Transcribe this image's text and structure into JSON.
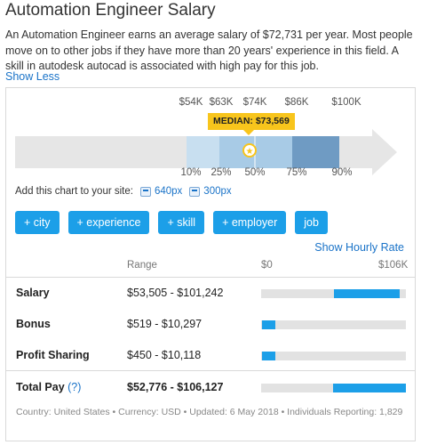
{
  "title": "Automation Engineer Salary",
  "description": "An Automation Engineer earns an average salary of $72,731 per year. Most people move on to other jobs if they have more than 20 years' experience in this field. A skill in autodesk autocad is associated with high pay for this job.",
  "show_less": "Show Less",
  "chart": {
    "top_ticks": [
      "$54K",
      "$63K",
      "$74K",
      "$86K",
      "$100K"
    ],
    "bottom_ticks": [
      "10%",
      "25%",
      "50%",
      "75%",
      "90%"
    ],
    "median_label": "MEDIAN: $73,569",
    "colors": {
      "arrow": "#e6e6e6",
      "band_10_25": "#c8dff0",
      "band_25_50": "#a8cbe6",
      "band_50_75": "#a8cbe6",
      "band_75_90": "#6f9bc3",
      "median_badge": "#f8c51c"
    }
  },
  "share": {
    "text": "Add this chart to your site:",
    "links": [
      "640px",
      "300px"
    ],
    "icon": "embed-icon"
  },
  "filters": [
    "+ city",
    "+ experience",
    "+ skill",
    "+ employer",
    "job"
  ],
  "hourly_link": "Show Hourly Rate",
  "table": {
    "headers": {
      "range": "Range",
      "min": "$0",
      "max": "$106K"
    },
    "max_value": 106000,
    "rows": [
      {
        "label": "Salary",
        "range": "$53,505 - $101,242",
        "low": 53505,
        "high": 101242
      },
      {
        "label": "Bonus",
        "range": "$519 - $10,297",
        "low": 519,
        "high": 10297
      },
      {
        "label": "Profit Sharing",
        "range": "$450 - $10,118",
        "low": 450,
        "high": 10118
      },
      {
        "label": "Total Pay",
        "info": "(?)",
        "range": "$52,776 - $106,127",
        "low": 52776,
        "high": 106127
      }
    ]
  },
  "footer": "Country: United States • Currency: USD • Updated: 6 May 2018 • Individuals Reporting: 1,829"
}
